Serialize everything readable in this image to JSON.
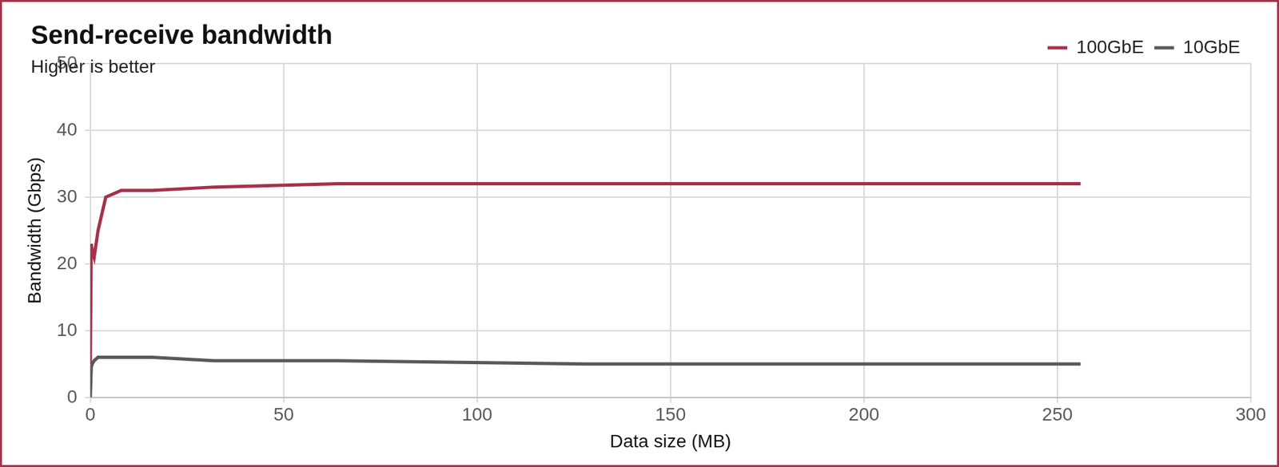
{
  "chart_data": {
    "type": "line",
    "title": "Send-receive bandwidth",
    "subtitle": "Higher is better",
    "x_label": "Data size (MB)",
    "y_label": "Bandwidth (Gbps)",
    "x": [
      0,
      0.25,
      0.5,
      1,
      2,
      4,
      8,
      16,
      32,
      64,
      128,
      256
    ],
    "series": [
      {
        "name": "100GbE",
        "color": "#a5314b",
        "values": [
          5,
          23,
          22,
          21,
          25,
          30,
          31,
          31,
          31.5,
          32,
          32,
          32
        ]
      },
      {
        "name": "10GbE",
        "color": "#595959",
        "values": [
          0,
          4.5,
          5,
          5.5,
          6,
          6,
          6,
          6,
          5.5,
          5.5,
          5,
          5
        ]
      }
    ],
    "xlim": [
      0,
      300
    ],
    "xticks": [
      0,
      50,
      100,
      150,
      200,
      250,
      300
    ],
    "ylim": [
      0,
      50
    ],
    "yticks": [
      0,
      10,
      20,
      30,
      40,
      50
    ],
    "grid": true,
    "legend": "top-right"
  }
}
